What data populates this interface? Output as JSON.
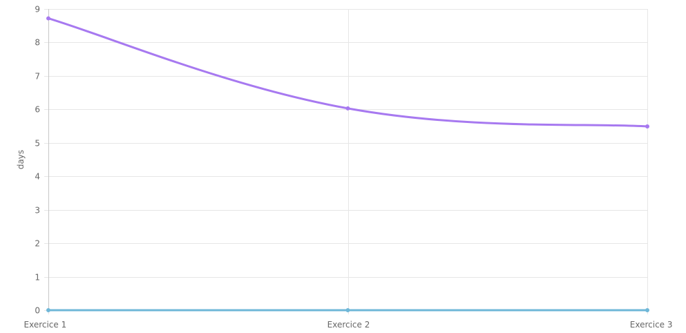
{
  "chart_data": {
    "type": "line",
    "categories": [
      "Exercice 1",
      "Exercice 2",
      "Exercice 3"
    ],
    "series": [
      {
        "values": [
          8.72,
          6.03,
          5.49
        ],
        "color": "#a779f0"
      },
      {
        "values": [
          0,
          0,
          0
        ],
        "color": "#6fb7d8"
      }
    ],
    "ylabel": "days",
    "ylim": [
      0,
      9
    ],
    "yticks": [
      0,
      1,
      2,
      3,
      4,
      5,
      6,
      7,
      8,
      9
    ],
    "grid": true,
    "grid_color": "#e6e6e6",
    "axis_color": "#c8c8c8"
  }
}
